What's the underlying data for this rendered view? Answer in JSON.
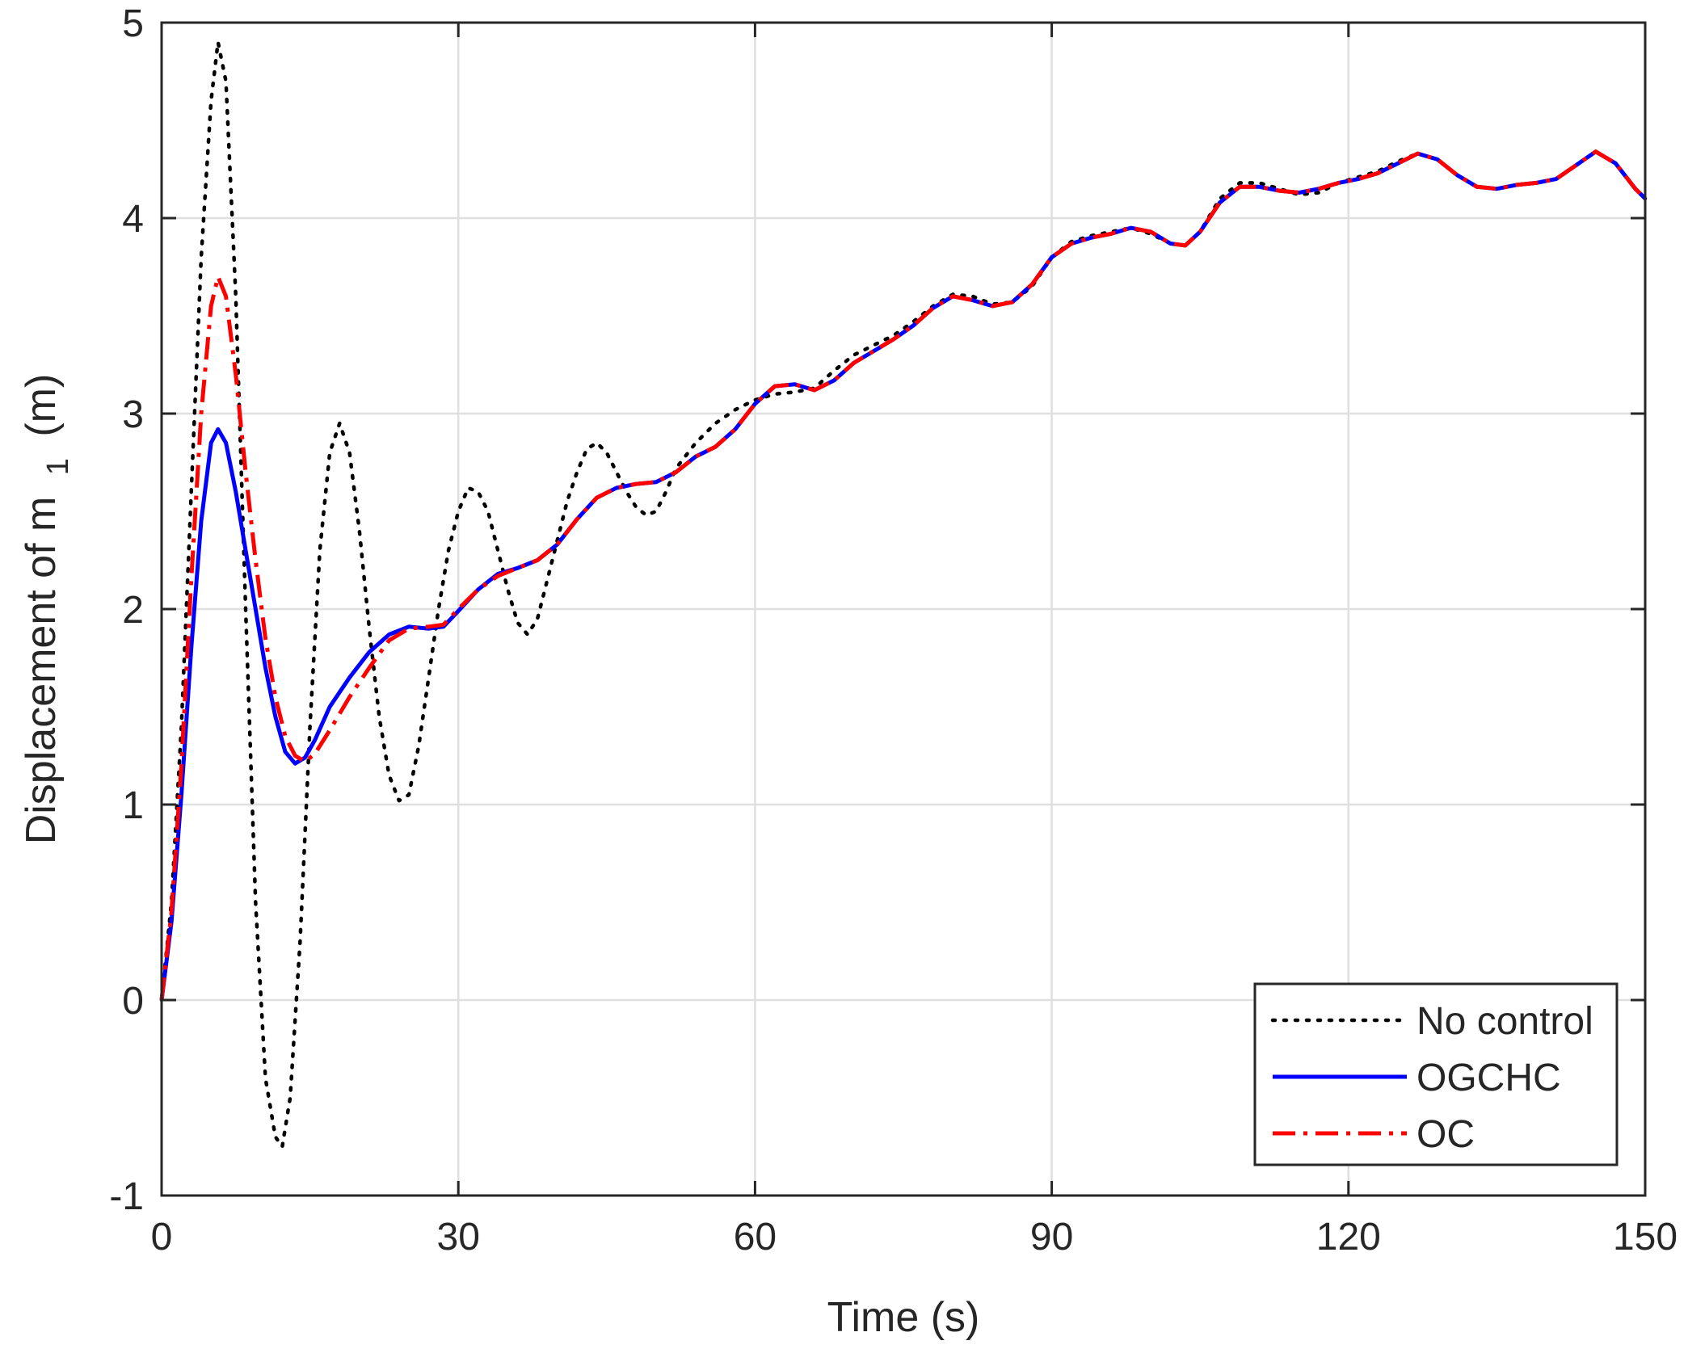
{
  "chart_data": {
    "type": "line",
    "title": "",
    "xlabel": "Time (s)",
    "ylabel_main": "Displacement of m",
    "ylabel_sub": "1",
    "ylabel_unit": "(m)",
    "xlim": [
      0,
      150
    ],
    "ylim": [
      -1,
      5
    ],
    "x_ticks": [
      0,
      30,
      60,
      90,
      120,
      150
    ],
    "x_tick_labels": [
      "0",
      "30",
      "60",
      "90",
      "120",
      "150"
    ],
    "y_ticks": [
      -1,
      0,
      1,
      2,
      3,
      4,
      5
    ],
    "y_tick_labels": [
      "-1",
      "0",
      "1",
      "2",
      "3",
      "4",
      "5"
    ],
    "grid": true,
    "legend_position": "bottom-right",
    "series": [
      {
        "name": "No control",
        "color": "#000000",
        "style": "dotted",
        "points": [
          [
            0,
            0
          ],
          [
            1,
            0.5
          ],
          [
            2,
            1.4
          ],
          [
            3,
            2.6
          ],
          [
            4,
            3.8
          ],
          [
            5,
            4.6
          ],
          [
            5.7,
            4.9
          ],
          [
            6.5,
            4.7
          ],
          [
            7.5,
            3.6
          ],
          [
            8.5,
            2.0
          ],
          [
            9.5,
            0.5
          ],
          [
            10.5,
            -0.4
          ],
          [
            11.5,
            -0.7
          ],
          [
            12.2,
            -0.75
          ],
          [
            13,
            -0.5
          ],
          [
            14,
            0.3
          ],
          [
            15,
            1.4
          ],
          [
            16,
            2.3
          ],
          [
            17,
            2.8
          ],
          [
            18,
            2.95
          ],
          [
            19,
            2.8
          ],
          [
            20,
            2.4
          ],
          [
            21,
            1.9
          ],
          [
            22,
            1.45
          ],
          [
            23,
            1.15
          ],
          [
            24,
            1.02
          ],
          [
            25,
            1.05
          ],
          [
            26,
            1.3
          ],
          [
            27,
            1.65
          ],
          [
            28,
            2.0
          ],
          [
            29,
            2.3
          ],
          [
            30,
            2.5
          ],
          [
            31,
            2.62
          ],
          [
            32,
            2.6
          ],
          [
            33,
            2.5
          ],
          [
            34,
            2.3
          ],
          [
            35,
            2.1
          ],
          [
            36,
            1.93
          ],
          [
            37,
            1.87
          ],
          [
            38,
            1.95
          ],
          [
            39,
            2.15
          ],
          [
            40,
            2.35
          ],
          [
            41,
            2.55
          ],
          [
            42,
            2.7
          ],
          [
            43,
            2.82
          ],
          [
            44,
            2.85
          ],
          [
            45,
            2.8
          ],
          [
            46,
            2.7
          ],
          [
            47,
            2.6
          ],
          [
            48,
            2.52
          ],
          [
            49,
            2.48
          ],
          [
            50,
            2.5
          ],
          [
            51,
            2.6
          ],
          [
            52,
            2.72
          ],
          [
            54,
            2.85
          ],
          [
            56,
            2.95
          ],
          [
            58,
            3.02
          ],
          [
            60,
            3.07
          ],
          [
            62,
            3.1
          ],
          [
            64,
            3.11
          ],
          [
            66,
            3.13
          ],
          [
            68,
            3.22
          ],
          [
            70,
            3.3
          ],
          [
            72,
            3.35
          ],
          [
            74,
            3.4
          ],
          [
            76,
            3.47
          ],
          [
            78,
            3.55
          ],
          [
            80,
            3.61
          ],
          [
            82,
            3.6
          ],
          [
            84,
            3.56
          ],
          [
            86,
            3.57
          ],
          [
            88,
            3.65
          ],
          [
            90,
            3.8
          ],
          [
            92,
            3.88
          ],
          [
            94,
            3.91
          ],
          [
            96,
            3.93
          ],
          [
            98,
            3.95
          ],
          [
            100,
            3.92
          ],
          [
            102,
            3.87
          ],
          [
            103.5,
            3.86
          ],
          [
            105,
            3.93
          ],
          [
            107,
            4.1
          ],
          [
            109,
            4.18
          ],
          [
            111,
            4.18
          ],
          [
            113,
            4.15
          ],
          [
            115,
            4.12
          ],
          [
            117,
            4.13
          ],
          [
            119,
            4.18
          ],
          [
            121,
            4.21
          ],
          [
            123,
            4.24
          ],
          [
            125,
            4.29
          ],
          [
            127,
            4.33
          ],
          [
            129,
            4.3
          ],
          [
            131,
            4.22
          ],
          [
            133,
            4.16
          ],
          [
            135,
            4.15
          ],
          [
            137,
            4.17
          ],
          [
            139,
            4.18
          ],
          [
            141,
            4.2
          ],
          [
            143,
            4.27
          ],
          [
            145,
            4.34
          ],
          [
            147,
            4.28
          ],
          [
            149,
            4.15
          ],
          [
            150,
            4.1
          ]
        ]
      },
      {
        "name": "OGCHC",
        "color": "#0000ff",
        "style": "solid",
        "points": [
          [
            0,
            0
          ],
          [
            1,
            0.4
          ],
          [
            2,
            1.05
          ],
          [
            3,
            1.8
          ],
          [
            4,
            2.45
          ],
          [
            5,
            2.85
          ],
          [
            5.7,
            2.92
          ],
          [
            6.5,
            2.85
          ],
          [
            7.5,
            2.6
          ],
          [
            8.5,
            2.3
          ],
          [
            9.5,
            2.0
          ],
          [
            10.5,
            1.7
          ],
          [
            11.5,
            1.45
          ],
          [
            12.5,
            1.27
          ],
          [
            13.5,
            1.21
          ],
          [
            14.5,
            1.24
          ],
          [
            15.5,
            1.33
          ],
          [
            17,
            1.5
          ],
          [
            19,
            1.65
          ],
          [
            21,
            1.78
          ],
          [
            23,
            1.87
          ],
          [
            25,
            1.91
          ],
          [
            27,
            1.9
          ],
          [
            28.5,
            1.91
          ],
          [
            30,
            1.99
          ],
          [
            32,
            2.1
          ],
          [
            34,
            2.18
          ],
          [
            36,
            2.21
          ],
          [
            38,
            2.25
          ],
          [
            40,
            2.33
          ],
          [
            42,
            2.46
          ],
          [
            44,
            2.57
          ],
          [
            46,
            2.62
          ],
          [
            48,
            2.64
          ],
          [
            50,
            2.65
          ],
          [
            52,
            2.7
          ],
          [
            54,
            2.78
          ],
          [
            56,
            2.83
          ],
          [
            58,
            2.92
          ],
          [
            60,
            3.05
          ],
          [
            62,
            3.14
          ],
          [
            64,
            3.15
          ],
          [
            66,
            3.12
          ],
          [
            68,
            3.17
          ],
          [
            70,
            3.26
          ],
          [
            72,
            3.32
          ],
          [
            74,
            3.38
          ],
          [
            76,
            3.45
          ],
          [
            78,
            3.54
          ],
          [
            80,
            3.6
          ],
          [
            82,
            3.58
          ],
          [
            84,
            3.55
          ],
          [
            86,
            3.57
          ],
          [
            88,
            3.66
          ],
          [
            90,
            3.8
          ],
          [
            92,
            3.87
          ],
          [
            94,
            3.9
          ],
          [
            96,
            3.92
          ],
          [
            98,
            3.95
          ],
          [
            100,
            3.93
          ],
          [
            102,
            3.87
          ],
          [
            103.5,
            3.86
          ],
          [
            105,
            3.93
          ],
          [
            107,
            4.08
          ],
          [
            109,
            4.16
          ],
          [
            111,
            4.16
          ],
          [
            113,
            4.14
          ],
          [
            115,
            4.13
          ],
          [
            117,
            4.15
          ],
          [
            119,
            4.18
          ],
          [
            121,
            4.2
          ],
          [
            123,
            4.23
          ],
          [
            125,
            4.28
          ],
          [
            127,
            4.33
          ],
          [
            129,
            4.3
          ],
          [
            131,
            4.22
          ],
          [
            133,
            4.16
          ],
          [
            135,
            4.15
          ],
          [
            137,
            4.17
          ],
          [
            139,
            4.18
          ],
          [
            141,
            4.2
          ],
          [
            143,
            4.27
          ],
          [
            145,
            4.34
          ],
          [
            147,
            4.28
          ],
          [
            149,
            4.15
          ],
          [
            150,
            4.1
          ]
        ]
      },
      {
        "name": "OC",
        "color": "#ff0000",
        "style": "dashdot",
        "points": [
          [
            0,
            0
          ],
          [
            1,
            0.45
          ],
          [
            2,
            1.2
          ],
          [
            3,
            2.15
          ],
          [
            4,
            3.0
          ],
          [
            5,
            3.55
          ],
          [
            5.7,
            3.7
          ],
          [
            6.5,
            3.6
          ],
          [
            7.5,
            3.2
          ],
          [
            8.5,
            2.7
          ],
          [
            9.5,
            2.25
          ],
          [
            10.5,
            1.85
          ],
          [
            11.5,
            1.55
          ],
          [
            12.5,
            1.35
          ],
          [
            13.5,
            1.25
          ],
          [
            14.5,
            1.22
          ],
          [
            15.5,
            1.26
          ],
          [
            17,
            1.38
          ],
          [
            19,
            1.55
          ],
          [
            21,
            1.7
          ],
          [
            23,
            1.84
          ],
          [
            25,
            1.9
          ],
          [
            27,
            1.91
          ],
          [
            28.5,
            1.92
          ],
          [
            30,
            2.0
          ],
          [
            32,
            2.1
          ],
          [
            34,
            2.17
          ],
          [
            36,
            2.21
          ],
          [
            38,
            2.25
          ],
          [
            40,
            2.33
          ],
          [
            42,
            2.46
          ],
          [
            44,
            2.57
          ],
          [
            46,
            2.62
          ],
          [
            48,
            2.64
          ],
          [
            50,
            2.65
          ],
          [
            52,
            2.7
          ],
          [
            54,
            2.78
          ],
          [
            56,
            2.83
          ],
          [
            58,
            2.92
          ],
          [
            60,
            3.05
          ],
          [
            62,
            3.14
          ],
          [
            64,
            3.15
          ],
          [
            66,
            3.12
          ],
          [
            68,
            3.17
          ],
          [
            70,
            3.26
          ],
          [
            72,
            3.32
          ],
          [
            74,
            3.38
          ],
          [
            76,
            3.45
          ],
          [
            78,
            3.54
          ],
          [
            80,
            3.6
          ],
          [
            82,
            3.58
          ],
          [
            84,
            3.55
          ],
          [
            86,
            3.57
          ],
          [
            88,
            3.66
          ],
          [
            90,
            3.8
          ],
          [
            92,
            3.87
          ],
          [
            94,
            3.9
          ],
          [
            96,
            3.92
          ],
          [
            98,
            3.95
          ],
          [
            100,
            3.93
          ],
          [
            102,
            3.87
          ],
          [
            103.5,
            3.86
          ],
          [
            105,
            3.93
          ],
          [
            107,
            4.08
          ],
          [
            109,
            4.16
          ],
          [
            111,
            4.16
          ],
          [
            113,
            4.14
          ],
          [
            115,
            4.13
          ],
          [
            117,
            4.15
          ],
          [
            119,
            4.18
          ],
          [
            121,
            4.2
          ],
          [
            123,
            4.23
          ],
          [
            125,
            4.28
          ],
          [
            127,
            4.33
          ],
          [
            129,
            4.3
          ],
          [
            131,
            4.22
          ],
          [
            133,
            4.16
          ],
          [
            135,
            4.15
          ],
          [
            137,
            4.17
          ],
          [
            139,
            4.18
          ],
          [
            141,
            4.2
          ],
          [
            143,
            4.27
          ],
          [
            145,
            4.34
          ],
          [
            147,
            4.28
          ],
          [
            149,
            4.15
          ],
          [
            150,
            4.1
          ]
        ]
      }
    ]
  }
}
